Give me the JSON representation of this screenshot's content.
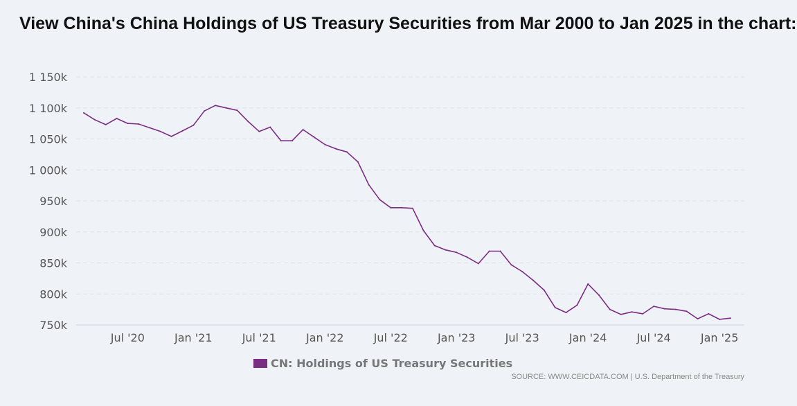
{
  "page": {
    "title": "View China's China Holdings of US Treasury Securities from Mar 2000 to Jan 2025 in the chart:"
  },
  "chart_data": {
    "type": "line",
    "title": "",
    "xlabel": "",
    "ylabel": "",
    "ylim": [
      750,
      1150
    ],
    "y_unit_suffix": "k",
    "y_ticks": [
      {
        "value": 750,
        "label": "750k"
      },
      {
        "value": 800,
        "label": "800k"
      },
      {
        "value": 850,
        "label": "850k"
      },
      {
        "value": 900,
        "label": "900k"
      },
      {
        "value": 950,
        "label": "950k"
      },
      {
        "value": 1000,
        "label": "1 000k"
      },
      {
        "value": 1050,
        "label": "1 050k"
      },
      {
        "value": 1100,
        "label": "1 100k"
      },
      {
        "value": 1150,
        "label": "1 150k"
      }
    ],
    "x_ticks": [
      {
        "date": "2020-07",
        "label": "Jul '20"
      },
      {
        "date": "2021-01",
        "label": "Jan '21"
      },
      {
        "date": "2021-07",
        "label": "Jul '21"
      },
      {
        "date": "2022-01",
        "label": "Jan '22"
      },
      {
        "date": "2022-07",
        "label": "Jul '22"
      },
      {
        "date": "2023-01",
        "label": "Jan '23"
      },
      {
        "date": "2023-07",
        "label": "Jul '23"
      },
      {
        "date": "2024-01",
        "label": "Jan '24"
      },
      {
        "date": "2024-07",
        "label": "Jul '24"
      },
      {
        "date": "2025-01",
        "label": "Jan '25"
      }
    ],
    "grid": true,
    "legend_position": "bottom-center",
    "series": [
      {
        "name": "CN: Holdings of US Treasury Securities",
        "color": "#7b2d83",
        "points": [
          {
            "x": "2020-03",
            "y": 1092
          },
          {
            "x": "2020-04",
            "y": 1081
          },
          {
            "x": "2020-05",
            "y": 1073
          },
          {
            "x": "2020-06",
            "y": 1083
          },
          {
            "x": "2020-07",
            "y": 1075
          },
          {
            "x": "2020-08",
            "y": 1074
          },
          {
            "x": "2020-09",
            "y": 1068
          },
          {
            "x": "2020-10",
            "y": 1062
          },
          {
            "x": "2020-11",
            "y": 1054
          },
          {
            "x": "2020-12",
            "y": 1063
          },
          {
            "x": "2021-01",
            "y": 1072
          },
          {
            "x": "2021-02",
            "y": 1095
          },
          {
            "x": "2021-03",
            "y": 1104
          },
          {
            "x": "2021-04",
            "y": 1100
          },
          {
            "x": "2021-05",
            "y": 1096
          },
          {
            "x": "2021-06",
            "y": 1078
          },
          {
            "x": "2021-07",
            "y": 1062
          },
          {
            "x": "2021-08",
            "y": 1069
          },
          {
            "x": "2021-09",
            "y": 1047
          },
          {
            "x": "2021-10",
            "y": 1047
          },
          {
            "x": "2021-11",
            "y": 1065
          },
          {
            "x": "2021-12",
            "y": 1053
          },
          {
            "x": "2022-01",
            "y": 1041
          },
          {
            "x": "2022-02",
            "y": 1034
          },
          {
            "x": "2022-03",
            "y": 1029
          },
          {
            "x": "2022-04",
            "y": 1013
          },
          {
            "x": "2022-05",
            "y": 976
          },
          {
            "x": "2022-06",
            "y": 952
          },
          {
            "x": "2022-07",
            "y": 939
          },
          {
            "x": "2022-08",
            "y": 939
          },
          {
            "x": "2022-09",
            "y": 938
          },
          {
            "x": "2022-10",
            "y": 902
          },
          {
            "x": "2022-11",
            "y": 878
          },
          {
            "x": "2022-12",
            "y": 871
          },
          {
            "x": "2023-01",
            "y": 867
          },
          {
            "x": "2023-02",
            "y": 859
          },
          {
            "x": "2023-03",
            "y": 849
          },
          {
            "x": "2023-04",
            "y": 869
          },
          {
            "x": "2023-05",
            "y": 869
          },
          {
            "x": "2023-06",
            "y": 847
          },
          {
            "x": "2023-07",
            "y": 836
          },
          {
            "x": "2023-08",
            "y": 822
          },
          {
            "x": "2023-09",
            "y": 806
          },
          {
            "x": "2023-10",
            "y": 778
          },
          {
            "x": "2023-11",
            "y": 770
          },
          {
            "x": "2023-12",
            "y": 782
          },
          {
            "x": "2024-01",
            "y": 816
          },
          {
            "x": "2024-02",
            "y": 798
          },
          {
            "x": "2024-03",
            "y": 775
          },
          {
            "x": "2024-04",
            "y": 767
          },
          {
            "x": "2024-05",
            "y": 771
          },
          {
            "x": "2024-06",
            "y": 768
          },
          {
            "x": "2024-07",
            "y": 780
          },
          {
            "x": "2024-08",
            "y": 776
          },
          {
            "x": "2024-09",
            "y": 775
          },
          {
            "x": "2024-10",
            "y": 772
          },
          {
            "x": "2024-11",
            "y": 760
          },
          {
            "x": "2024-12",
            "y": 768
          },
          {
            "x": "2025-01",
            "y": 759
          },
          {
            "x": "2025-02",
            "y": 761
          }
        ]
      }
    ],
    "source": "SOURCE: WWW.CEICDATA.COM | U.S. Department of the Treasury"
  }
}
